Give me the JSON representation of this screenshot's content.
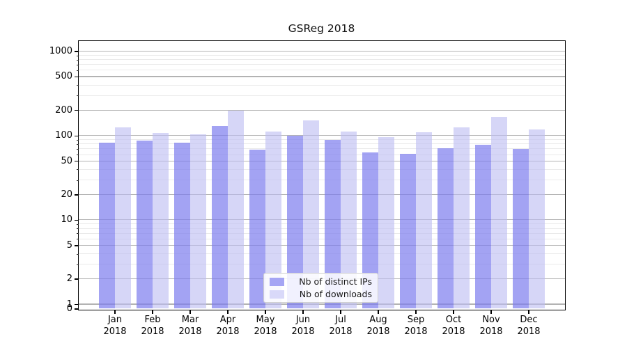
{
  "chart_data": {
    "type": "bar",
    "title": "GSReg 2018",
    "categories": [
      "Jan 2018",
      "Feb 2018",
      "Mar 2018",
      "Apr 2018",
      "May 2018",
      "Jun 2018",
      "Jul 2018",
      "Aug 2018",
      "Sep 2018",
      "Oct 2018",
      "Nov 2018",
      "Dec 2018"
    ],
    "series": [
      {
        "name": "Nb of distinct IPs",
        "swatch_color": "#a5a5f4",
        "fill_color": "rgba(124,124,238,0.70)",
        "values": [
          82,
          87,
          82,
          130,
          68,
          100,
          89,
          63,
          61,
          70,
          78,
          69
        ]
      },
      {
        "name": "Nb of downloads",
        "swatch_color": "#d9d9f9",
        "fill_color": "rgba(186,186,242,0.60)",
        "values": [
          124,
          107,
          103,
          196,
          112,
          152,
          112,
          96,
          110,
          124,
          165,
          118
        ]
      }
    ],
    "xlabel": "",
    "ylabel": "",
    "y_scale": "log",
    "y_ticks": [
      0,
      1,
      2,
      5,
      10,
      20,
      50,
      100,
      200,
      500,
      1000
    ],
    "y_minor_ticks": [
      3,
      4,
      6,
      7,
      8,
      9,
      30,
      40,
      60,
      70,
      80,
      90,
      300,
      400,
      600,
      700,
      800,
      900
    ],
    "ylim": [
      0,
      1300
    ],
    "grid": true,
    "legend_position": "lower center",
    "grid_major_color": "#b3b3b3",
    "grid_minor_color": "#eaeaea"
  }
}
